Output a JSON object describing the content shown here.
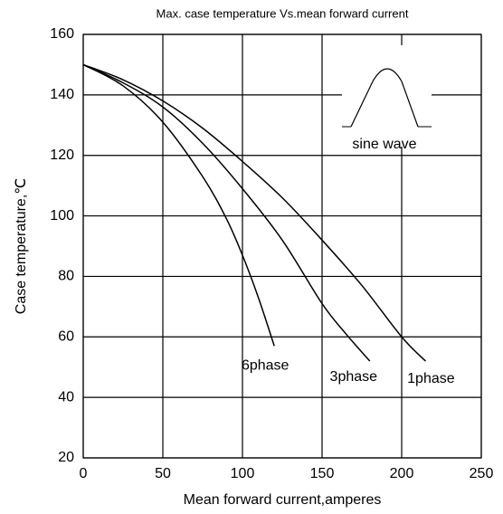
{
  "chart_data": {
    "type": "line",
    "title": "Max. case temperature  Vs.mean forward current",
    "x_label": "Mean forward  current,amperes",
    "y_label": "Case temperature,℃",
    "annotation": "sine wave",
    "xlim": [
      0,
      250
    ],
    "xticks": [
      0,
      50,
      100,
      150,
      200,
      250
    ],
    "ylim": [
      20,
      160
    ],
    "yticks": [
      20,
      40,
      60,
      80,
      100,
      120,
      140,
      160
    ],
    "grid": true,
    "series": [
      {
        "name": "6phase",
        "color": "#000000",
        "x": [
          0,
          25,
          50,
          75,
          90,
          100,
          110,
          120
        ],
        "values": [
          150,
          143,
          131,
          113,
          99,
          87,
          73,
          57
        ]
      },
      {
        "name": "3phase",
        "color": "#000000",
        "x": [
          0,
          25,
          50,
          75,
          100,
          125,
          150,
          165,
          180
        ],
        "values": [
          150,
          144,
          136,
          124,
          109,
          92,
          71,
          61,
          52
        ]
      },
      {
        "name": "1phase",
        "color": "#000000",
        "x": [
          0,
          25,
          50,
          75,
          100,
          125,
          150,
          175,
          200,
          215
        ],
        "values": [
          150,
          145,
          138,
          129,
          118,
          106,
          92,
          77,
          60,
          52
        ]
      }
    ]
  }
}
